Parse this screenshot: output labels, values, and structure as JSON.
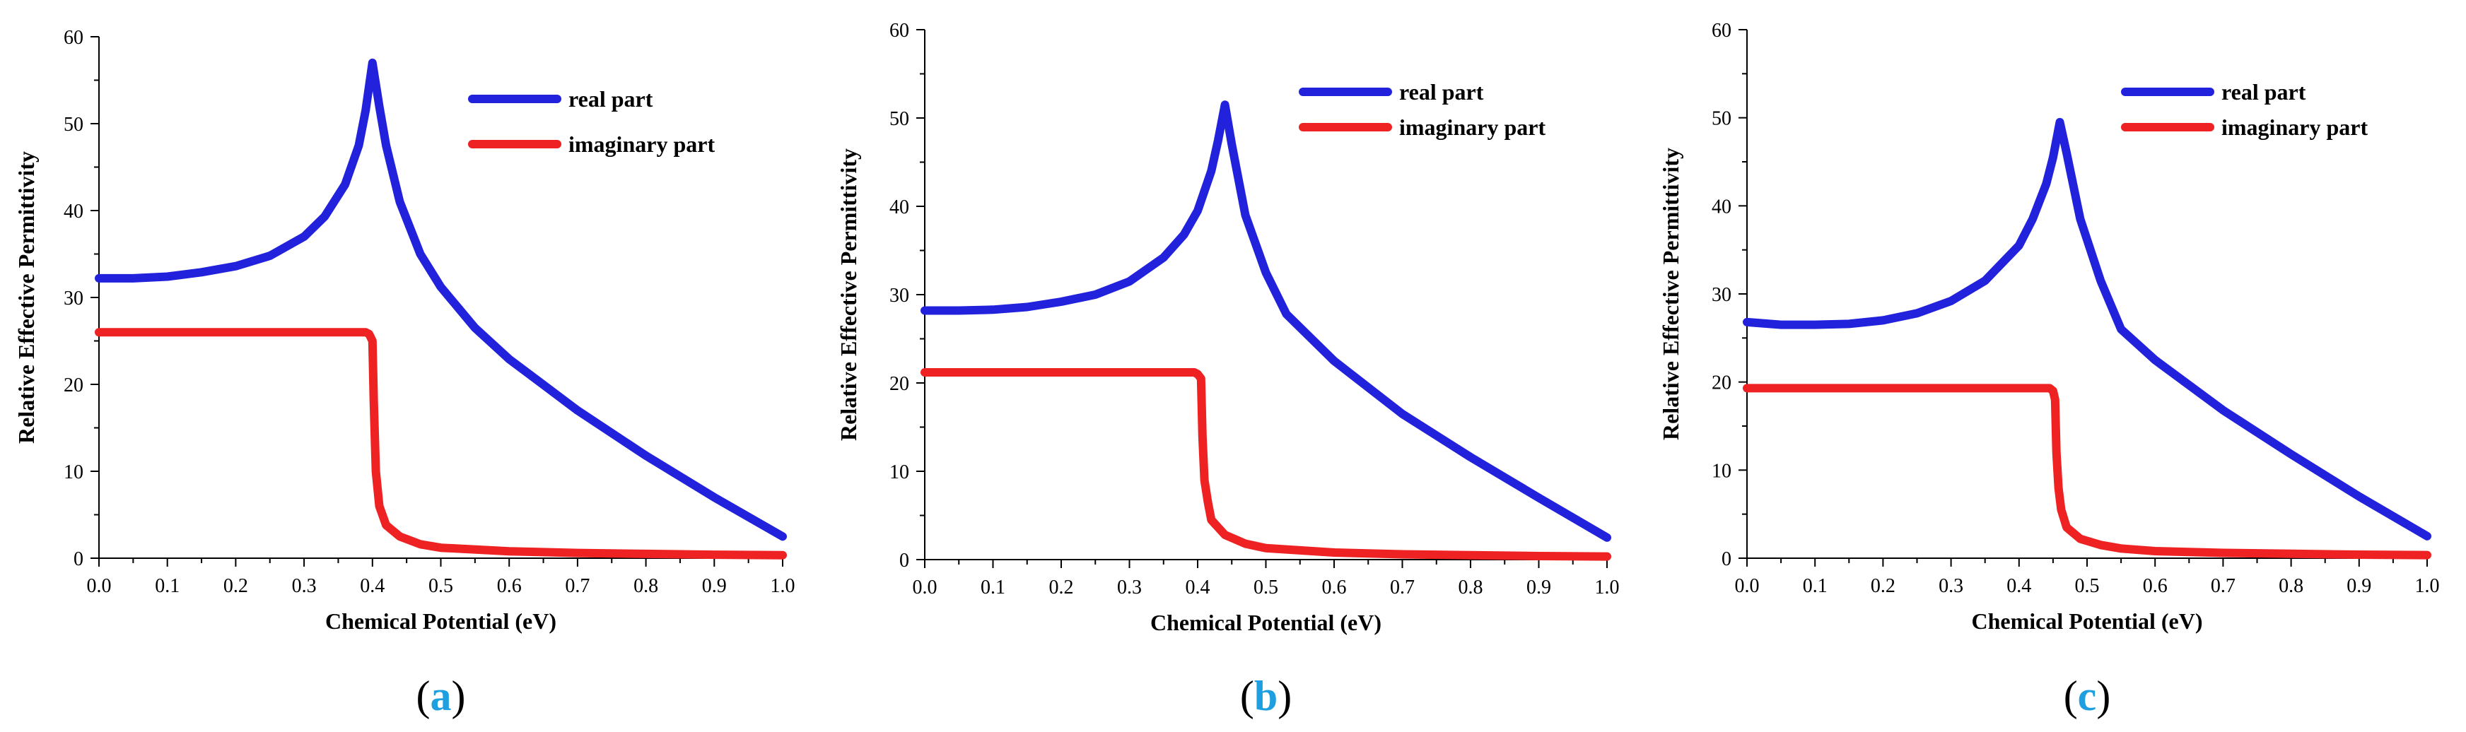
{
  "chart_data": [
    {
      "type": "line",
      "panel_label": "a",
      "xlabel": "Chemical Potential (eV)",
      "ylabel": "Relative Effective Permittivity",
      "xlim": [
        0,
        1.0
      ],
      "ylim": [
        0,
        60
      ],
      "x_ticks": [
        0.0,
        0.1,
        0.2,
        0.3,
        0.4,
        0.5,
        0.6,
        0.7,
        0.8,
        0.9,
        1.0
      ],
      "x_tick_labels": [
        "0.0",
        "0.1",
        "0.2",
        "0.3",
        "0.4",
        "0.5",
        "0.6",
        "0.7",
        "0.8",
        "0.9",
        "1.0"
      ],
      "y_ticks": [
        0,
        10,
        20,
        30,
        40,
        50,
        60
      ],
      "y_tick_labels": [
        "0",
        "10",
        "20",
        "30",
        "40",
        "50",
        "60"
      ],
      "legend": [
        "real part",
        "imaginary part"
      ],
      "legend_position": "top-right",
      "series": [
        {
          "name": "real part",
          "color": "#2222dd",
          "x": [
            0.0,
            0.05,
            0.1,
            0.15,
            0.2,
            0.25,
            0.3,
            0.33,
            0.36,
            0.38,
            0.39,
            0.4,
            0.41,
            0.42,
            0.44,
            0.47,
            0.5,
            0.55,
            0.6,
            0.7,
            0.8,
            0.9,
            1.0
          ],
          "values": [
            32.2,
            32.2,
            32.4,
            32.9,
            33.6,
            34.8,
            37.0,
            39.3,
            43.0,
            47.5,
            51.5,
            57.0,
            52.0,
            47.5,
            41.0,
            35.0,
            31.2,
            26.5,
            22.9,
            17.0,
            11.8,
            7.0,
            2.5
          ]
        },
        {
          "name": "imaginary part",
          "color": "#ee2222",
          "x": [
            0.0,
            0.39,
            0.395,
            0.4,
            0.402,
            0.405,
            0.41,
            0.42,
            0.44,
            0.47,
            0.5,
            0.6,
            0.7,
            0.8,
            0.9,
            1.0
          ],
          "values": [
            26.0,
            26.0,
            25.8,
            25.0,
            18.0,
            10.0,
            6.0,
            3.8,
            2.5,
            1.6,
            1.2,
            0.8,
            0.6,
            0.5,
            0.4,
            0.35
          ]
        }
      ]
    },
    {
      "type": "line",
      "panel_label": "b",
      "xlabel": "Chemical Potential (eV)",
      "ylabel": "Relative Effective Permittivity",
      "xlim": [
        0,
        1.0
      ],
      "ylim": [
        0,
        60
      ],
      "x_ticks": [
        0.0,
        0.1,
        0.2,
        0.3,
        0.4,
        0.5,
        0.6,
        0.7,
        0.8,
        0.9,
        1.0
      ],
      "x_tick_labels": [
        "0.0",
        "0.1",
        "0.2",
        "0.3",
        "0.4",
        "0.5",
        "0.6",
        "0.7",
        "0.8",
        "0.9",
        "1.0"
      ],
      "y_ticks": [
        0,
        10,
        20,
        30,
        40,
        50,
        60
      ],
      "y_tick_labels": [
        "0",
        "10",
        "20",
        "30",
        "40",
        "50",
        "60"
      ],
      "legend": [
        "real part",
        "imaginary part"
      ],
      "legend_position": "top-right",
      "series": [
        {
          "name": "real part",
          "color": "#2222dd",
          "x": [
            0.0,
            0.05,
            0.1,
            0.15,
            0.2,
            0.25,
            0.3,
            0.35,
            0.38,
            0.4,
            0.42,
            0.43,
            0.44,
            0.45,
            0.47,
            0.5,
            0.53,
            0.6,
            0.7,
            0.8,
            0.9,
            1.0
          ],
          "values": [
            28.2,
            28.2,
            28.3,
            28.6,
            29.2,
            30.0,
            31.5,
            34.2,
            36.8,
            39.5,
            44.0,
            47.5,
            51.5,
            47.0,
            39.0,
            32.5,
            27.8,
            22.5,
            16.5,
            11.6,
            7.0,
            2.5
          ]
        },
        {
          "name": "imaginary part",
          "color": "#ee2222",
          "x": [
            0.0,
            0.395,
            0.4,
            0.405,
            0.407,
            0.41,
            0.415,
            0.42,
            0.44,
            0.47,
            0.5,
            0.6,
            0.7,
            0.8,
            0.9,
            1.0
          ],
          "values": [
            21.2,
            21.2,
            21.0,
            20.5,
            14.0,
            9.0,
            6.5,
            4.5,
            2.8,
            1.8,
            1.3,
            0.8,
            0.6,
            0.5,
            0.4,
            0.35
          ]
        }
      ]
    },
    {
      "type": "line",
      "panel_label": "c",
      "xlabel": "Chemical Potential (eV)",
      "ylabel": "Relative Effective Permittivity",
      "xlim": [
        0,
        1.0
      ],
      "ylim": [
        0,
        60
      ],
      "x_ticks": [
        0.0,
        0.1,
        0.2,
        0.3,
        0.4,
        0.5,
        0.6,
        0.7,
        0.8,
        0.9,
        1.0
      ],
      "x_tick_labels": [
        "0.0",
        "0.1",
        "0.2",
        "0.3",
        "0.4",
        "0.5",
        "0.6",
        "0.7",
        "0.8",
        "0.9",
        "1.0"
      ],
      "y_ticks": [
        0,
        10,
        20,
        30,
        40,
        50,
        60
      ],
      "y_tick_labels": [
        "0",
        "10",
        "20",
        "30",
        "40",
        "50",
        "60"
      ],
      "legend": [
        "real part",
        "imaginary part"
      ],
      "legend_position": "top-right",
      "series": [
        {
          "name": "real part",
          "color": "#2222dd",
          "x": [
            0.0,
            0.05,
            0.1,
            0.15,
            0.2,
            0.25,
            0.3,
            0.35,
            0.4,
            0.42,
            0.44,
            0.45,
            0.46,
            0.47,
            0.49,
            0.52,
            0.55,
            0.6,
            0.7,
            0.8,
            0.9,
            1.0
          ],
          "values": [
            26.8,
            26.5,
            26.5,
            26.6,
            27.0,
            27.8,
            29.2,
            31.5,
            35.5,
            38.5,
            42.5,
            45.5,
            49.5,
            46.0,
            38.5,
            31.5,
            26.0,
            22.5,
            16.8,
            11.8,
            7.0,
            2.5
          ]
        },
        {
          "name": "imaginary part",
          "color": "#ee2222",
          "x": [
            0.0,
            0.445,
            0.45,
            0.453,
            0.455,
            0.458,
            0.462,
            0.47,
            0.49,
            0.52,
            0.55,
            0.6,
            0.7,
            0.8,
            0.9,
            1.0
          ],
          "values": [
            19.3,
            19.3,
            19.0,
            18.0,
            12.0,
            8.0,
            5.5,
            3.5,
            2.2,
            1.5,
            1.1,
            0.8,
            0.6,
            0.5,
            0.4,
            0.35
          ]
        }
      ]
    }
  ]
}
